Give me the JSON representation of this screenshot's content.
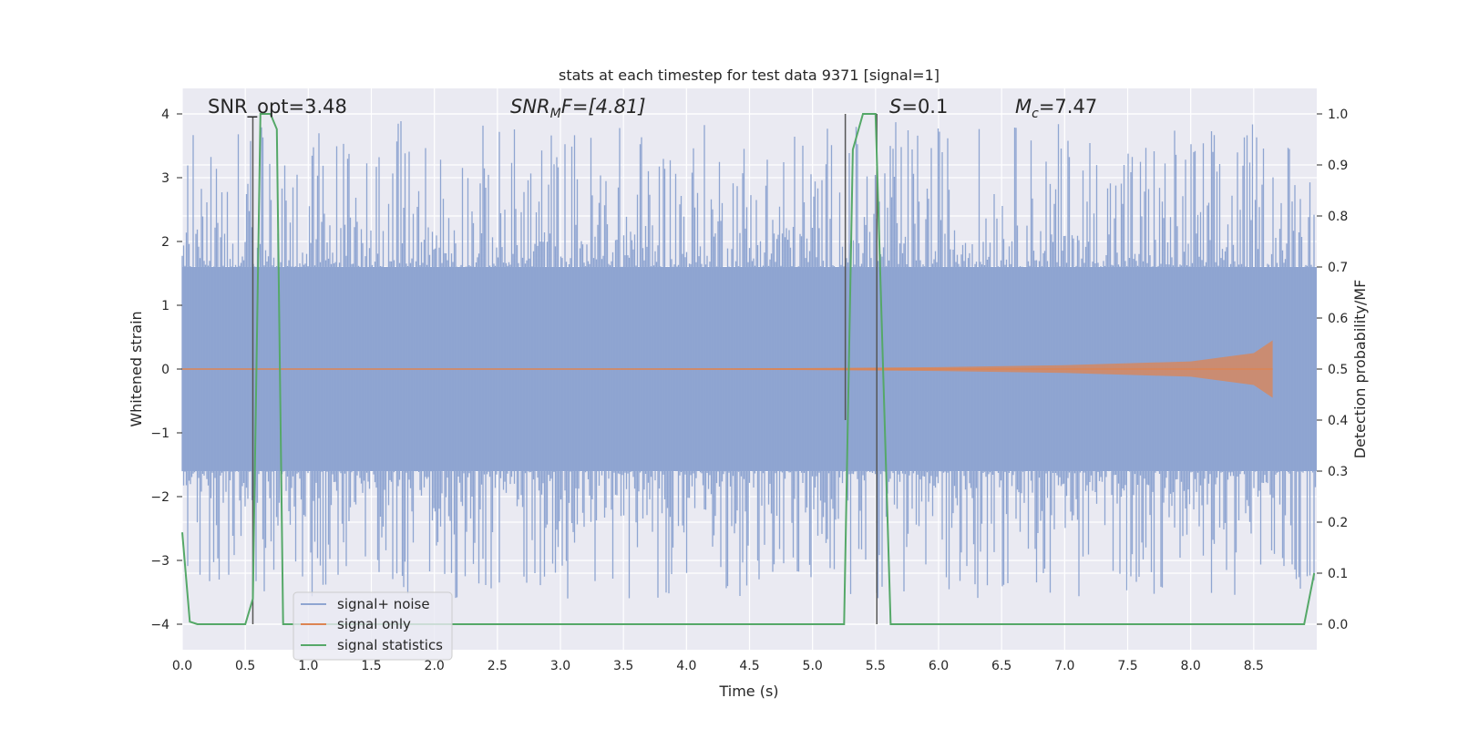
{
  "chart_data": {
    "type": "line",
    "title": "stats at each timestep for test data 9371 [signal=1]",
    "xlabel": "Time (s)",
    "ylabel_left": "Whitened strain",
    "ylabel_right": "Detection probability/MF",
    "xlim": [
      0.0,
      9.0
    ],
    "ylim_left": [
      -4.4,
      4.4
    ],
    "ylim_right": [
      -0.05,
      1.05
    ],
    "xticks": [
      "0.0",
      "0.5",
      "1.0",
      "1.5",
      "2.0",
      "2.5",
      "3.0",
      "3.5",
      "4.0",
      "4.5",
      "5.0",
      "5.5",
      "6.0",
      "6.5",
      "7.0",
      "7.5",
      "8.0",
      "8.5"
    ],
    "yticks_left": [
      "4",
      "3",
      "2",
      "1",
      "0",
      "−1",
      "−2",
      "−3",
      "−4"
    ],
    "yticks_right": [
      "1.0",
      "0.9",
      "0.8",
      "0.7",
      "0.6",
      "0.5",
      "0.4",
      "0.3",
      "0.2",
      "0.1",
      "0.0"
    ],
    "grid": true,
    "legend_placement": "lower-left",
    "annotations": {
      "snr_opt": "SNR_opt=3.48",
      "snr_mf_sym": "SNR",
      "snr_mf_sub": "M",
      "snr_mf_rest": "F=[4.81]",
      "s_sym": "S",
      "s_rest": "=0.1",
      "mc_sym": "M",
      "mc_sub": "c",
      "mc_rest": "=7.47"
    },
    "series": [
      {
        "name": "signal+ noise",
        "color": "#8fa5d1",
        "description_values": "whitened noise, roughly within [-3.5, 4.0]",
        "envelope": [
          -1.6,
          1.6
        ]
      },
      {
        "name": "signal only",
        "color": "#dd8452",
        "amplitude_points": {
          "x": [
            0.0,
            4.5,
            6.0,
            7.0,
            8.0,
            8.5,
            8.65
          ],
          "y": [
            0.0,
            0.01,
            0.03,
            0.06,
            0.12,
            0.25,
            0.45
          ]
        }
      },
      {
        "name": "signal statistics",
        "color": "#55a868",
        "x": [
          0.0,
          0.06,
          0.12,
          0.5,
          0.56,
          0.62,
          0.7,
          0.75,
          0.8,
          5.25,
          5.32,
          5.4,
          5.5,
          5.62,
          8.9,
          8.98
        ],
        "y": [
          0.18,
          0.005,
          0.0,
          0.0,
          0.05,
          1.0,
          1.0,
          0.97,
          0.0,
          0.0,
          0.93,
          1.0,
          1.0,
          0.0,
          0.0,
          0.1
        ]
      }
    ],
    "markers": {
      "color": "#555555",
      "x": [
        0.56,
        5.26,
        5.51
      ],
      "y_top": [
        3.95,
        4.0,
        4.0
      ],
      "y_bottom": [
        -4.0,
        -0.8,
        -4.0
      ]
    }
  }
}
